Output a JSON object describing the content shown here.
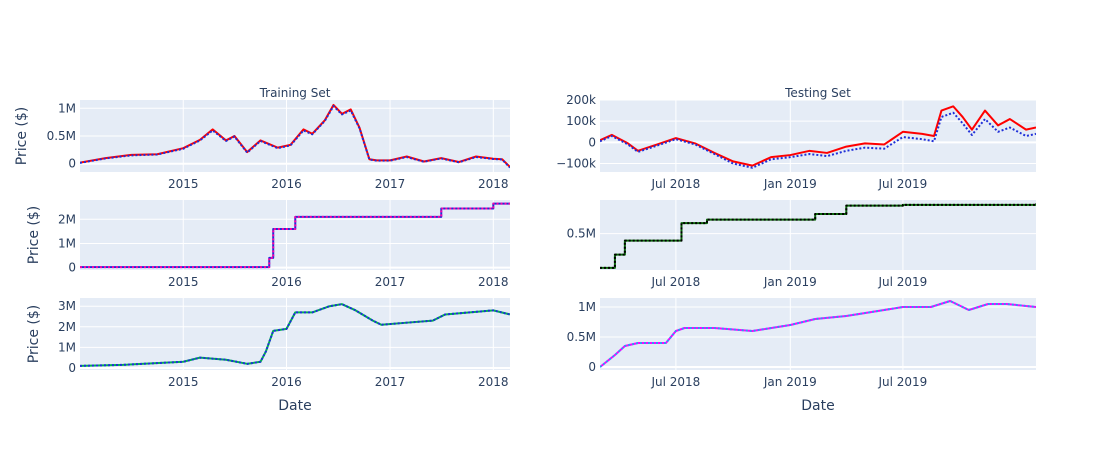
{
  "chart_data": [
    {
      "type": "line",
      "title": "Training Set",
      "ylabel": "Price ($)",
      "xlabel": "",
      "xlim": [
        "2014-01-01",
        "2018-03-01"
      ],
      "ylim": [
        -150000,
        1150000
      ],
      "yticks": [
        0,
        500000,
        1000000
      ],
      "ytick_labels": [
        "0",
        "0.5M",
        "1M"
      ],
      "xticks": [
        "2015-01-01",
        "2016-01-01",
        "2017-01-01",
        "2018-01-01"
      ],
      "xtick_labels": [
        "2015",
        "2016",
        "2017",
        "2018"
      ],
      "series": [
        {
          "color": "#ff0000",
          "dash": "solid",
          "x": [
            "2014-01-01",
            "2014-04-01",
            "2014-07-01",
            "2014-10-01",
            "2015-01-01",
            "2015-03-01",
            "2015-04-15",
            "2015-06-01",
            "2015-07-01",
            "2015-08-15",
            "2015-10-01",
            "2015-12-01",
            "2016-01-15",
            "2016-03-01",
            "2016-04-01",
            "2016-05-15",
            "2016-06-15",
            "2016-07-15",
            "2016-08-15",
            "2016-09-15",
            "2016-10-20",
            "2016-11-15",
            "2017-01-01",
            "2017-03-01",
            "2017-05-01",
            "2017-07-01",
            "2017-09-01",
            "2017-11-01",
            "2018-01-01",
            "2018-02-01",
            "2018-03-01"
          ],
          "y": [
            20000,
            100000,
            160000,
            170000,
            280000,
            430000,
            620000,
            420000,
            500000,
            210000,
            420000,
            290000,
            340000,
            620000,
            540000,
            780000,
            1060000,
            900000,
            980000,
            650000,
            80000,
            60000,
            60000,
            130000,
            40000,
            100000,
            30000,
            130000,
            90000,
            80000,
            -60000
          ]
        },
        {
          "color": "#1f2fd8",
          "dash": "dot",
          "x": [
            "2014-01-01",
            "2014-04-01",
            "2014-07-01",
            "2014-10-01",
            "2015-01-01",
            "2015-03-01",
            "2015-04-15",
            "2015-06-01",
            "2015-07-01",
            "2015-08-15",
            "2015-10-01",
            "2015-12-01",
            "2016-01-15",
            "2016-03-01",
            "2016-04-01",
            "2016-05-15",
            "2016-06-15",
            "2016-07-15",
            "2016-08-15",
            "2016-09-15",
            "2016-10-20",
            "2016-11-15",
            "2017-01-01",
            "2017-03-01",
            "2017-05-01",
            "2017-07-01",
            "2017-09-01",
            "2017-11-01",
            "2018-01-01",
            "2018-02-01",
            "2018-03-01"
          ],
          "y": [
            15000,
            95000,
            150000,
            165000,
            270000,
            420000,
            600000,
            410000,
            490000,
            200000,
            410000,
            280000,
            330000,
            600000,
            530000,
            770000,
            1040000,
            890000,
            960000,
            640000,
            75000,
            55000,
            55000,
            120000,
            35000,
            95000,
            25000,
            120000,
            85000,
            75000,
            -70000
          ]
        }
      ]
    },
    {
      "type": "line",
      "title": "Testing Set",
      "ylabel": "",
      "xlabel": "",
      "xlim": [
        "2018-03-01",
        "2020-01-31"
      ],
      "ylim": [
        -140000,
        200000
      ],
      "yticks": [
        -100000,
        0,
        100000,
        200000
      ],
      "ytick_labels": [
        "−100k",
        "0",
        "100k",
        "200k"
      ],
      "xticks": [
        "2018-07-01",
        "2019-01-01",
        "2019-07-01"
      ],
      "xtick_labels": [
        "Jul 2018",
        "Jan 2019",
        "Jul 2019"
      ],
      "series": [
        {
          "color": "#ff0000",
          "dash": "solid",
          "x": [
            "2018-03-01",
            "2018-03-20",
            "2018-04-15",
            "2018-05-01",
            "2018-06-01",
            "2018-07-01",
            "2018-08-01",
            "2018-09-01",
            "2018-10-01",
            "2018-11-01",
            "2018-12-01",
            "2019-01-01",
            "2019-02-01",
            "2019-03-01",
            "2019-04-01",
            "2019-05-01",
            "2019-06-01",
            "2019-07-01",
            "2019-08-01",
            "2019-08-20",
            "2019-09-01",
            "2019-09-20",
            "2019-10-05",
            "2019-10-20",
            "2019-11-10",
            "2019-12-01",
            "2019-12-20",
            "2020-01-15",
            "2020-01-31"
          ],
          "y": [
            10000,
            35000,
            -5000,
            -40000,
            -10000,
            20000,
            -5000,
            -50000,
            -90000,
            -110000,
            -70000,
            -60000,
            -40000,
            -50000,
            -20000,
            -5000,
            -10000,
            50000,
            40000,
            30000,
            150000,
            170000,
            120000,
            60000,
            150000,
            80000,
            110000,
            60000,
            70000
          ]
        },
        {
          "color": "#1f2fd8",
          "dash": "dot",
          "x": [
            "2018-03-01",
            "2018-03-20",
            "2018-04-15",
            "2018-05-01",
            "2018-06-01",
            "2018-07-01",
            "2018-08-01",
            "2018-09-01",
            "2018-10-01",
            "2018-11-01",
            "2018-12-01",
            "2019-01-01",
            "2019-02-01",
            "2019-03-01",
            "2019-04-01",
            "2019-05-01",
            "2019-06-01",
            "2019-07-01",
            "2019-08-01",
            "2019-08-20",
            "2019-09-01",
            "2019-09-20",
            "2019-10-05",
            "2019-10-20",
            "2019-11-10",
            "2019-12-01",
            "2019-12-20",
            "2020-01-15",
            "2020-01-31"
          ],
          "y": [
            5000,
            30000,
            -10000,
            -45000,
            -15000,
            15000,
            -10000,
            -55000,
            -100000,
            -120000,
            -80000,
            -70000,
            -55000,
            -65000,
            -40000,
            -25000,
            -30000,
            25000,
            15000,
            5000,
            120000,
            140000,
            90000,
            35000,
            110000,
            50000,
            70000,
            30000,
            40000
          ]
        }
      ]
    },
    {
      "type": "line",
      "title": "",
      "ylabel": "Price ($)",
      "xlabel": "",
      "xlim": [
        "2014-01-01",
        "2018-03-01"
      ],
      "ylim": [
        -100000,
        2800000
      ],
      "yticks": [
        0,
        1000000,
        2000000
      ],
      "ytick_labels": [
        "0",
        "1M",
        "2M"
      ],
      "xticks": [
        "2015-01-01",
        "2016-01-01",
        "2017-01-01",
        "2018-01-01"
      ],
      "xtick_labels": [
        "2015",
        "2016",
        "2017",
        "2018"
      ],
      "series": [
        {
          "color": "#1f2fd8",
          "dash": "solid",
          "step": true,
          "x": [
            "2014-01-01",
            "2015-10-15",
            "2015-11-01",
            "2015-11-15",
            "2016-01-01",
            "2016-02-01",
            "2017-06-15",
            "2017-07-01",
            "2018-01-01",
            "2018-03-01"
          ],
          "y": [
            20000,
            20000,
            400000,
            1600000,
            1600000,
            2100000,
            2100000,
            2450000,
            2650000,
            2650000
          ]
        },
        {
          "color": "#ff00a8",
          "dash": "dot",
          "step": true,
          "x": [
            "2014-01-01",
            "2015-10-15",
            "2015-11-01",
            "2015-11-15",
            "2016-01-01",
            "2016-02-01",
            "2017-06-15",
            "2017-07-01",
            "2018-01-01",
            "2018-03-01"
          ],
          "y": [
            20000,
            20000,
            400000,
            1600000,
            1600000,
            2100000,
            2100000,
            2450000,
            2650000,
            2650000
          ]
        }
      ]
    },
    {
      "type": "line",
      "title": "",
      "ylabel": "",
      "xlabel": "",
      "xlim": [
        "2018-03-01",
        "2020-01-31"
      ],
      "ylim": [
        -20000,
        980000
      ],
      "yticks": [
        500000
      ],
      "ytick_labels": [
        "0.5M"
      ],
      "xticks": [
        "2018-07-01",
        "2019-01-01",
        "2019-07-01"
      ],
      "xtick_labels": [
        "Jul 2018",
        "Jan 2019",
        "Jul 2019"
      ],
      "series": [
        {
          "color": "#0b6b0b",
          "dash": "solid",
          "step": true,
          "x": [
            "2018-03-01",
            "2018-03-25",
            "2018-04-10",
            "2018-06-20",
            "2018-07-10",
            "2018-08-20",
            "2019-01-01",
            "2019-02-10",
            "2019-04-01",
            "2019-07-01",
            "2020-01-31"
          ],
          "y": [
            10000,
            200000,
            400000,
            400000,
            650000,
            700000,
            700000,
            780000,
            900000,
            910000,
            930000
          ]
        },
        {
          "color": "#000000",
          "dash": "dot",
          "step": true,
          "x": [
            "2018-03-01",
            "2018-03-25",
            "2018-04-10",
            "2018-06-20",
            "2018-07-10",
            "2018-08-20",
            "2019-01-01",
            "2019-02-10",
            "2019-04-01",
            "2019-07-01",
            "2020-01-31"
          ],
          "y": [
            10000,
            200000,
            400000,
            400000,
            650000,
            700000,
            700000,
            780000,
            900000,
            910000,
            930000
          ]
        }
      ]
    },
    {
      "type": "line",
      "title": "",
      "ylabel": "Price ($)",
      "xlabel": "Date",
      "xlim": [
        "2014-01-01",
        "2018-03-01"
      ],
      "ylim": [
        -100000,
        3400000
      ],
      "yticks": [
        0,
        1000000,
        2000000,
        3000000
      ],
      "ytick_labels": [
        "0",
        "1M",
        "2M",
        "3M"
      ],
      "xticks": [
        "2015-01-01",
        "2016-01-01",
        "2017-01-01",
        "2018-01-01"
      ],
      "xtick_labels": [
        "2015",
        "2016",
        "2017",
        "2018"
      ],
      "series": [
        {
          "color": "#00b050",
          "dash": "solid",
          "x": [
            "2014-01-01",
            "2014-06-01",
            "2015-01-01",
            "2015-03-01",
            "2015-06-01",
            "2015-08-15",
            "2015-10-01",
            "2015-10-20",
            "2015-11-15",
            "2016-01-01",
            "2016-02-01",
            "2016-04-01",
            "2016-06-01",
            "2016-07-15",
            "2016-09-01",
            "2016-11-01",
            "2016-12-01",
            "2017-03-01",
            "2017-06-01",
            "2017-07-15",
            "2018-01-01",
            "2018-03-01"
          ],
          "y": [
            100000,
            150000,
            300000,
            500000,
            400000,
            200000,
            300000,
            800000,
            1800000,
            1900000,
            2700000,
            2700000,
            3000000,
            3100000,
            2800000,
            2300000,
            2100000,
            2200000,
            2300000,
            2600000,
            2800000,
            2600000
          ]
        },
        {
          "color": "#1f2fd8",
          "dash": "dot",
          "x": [
            "2014-01-01",
            "2014-06-01",
            "2015-01-01",
            "2015-03-01",
            "2015-06-01",
            "2015-08-15",
            "2015-10-01",
            "2015-10-20",
            "2015-11-15",
            "2016-01-01",
            "2016-02-01",
            "2016-04-01",
            "2016-06-01",
            "2016-07-15",
            "2016-09-01",
            "2016-11-01",
            "2016-12-01",
            "2017-03-01",
            "2017-06-01",
            "2017-07-15",
            "2018-01-01",
            "2018-03-01"
          ],
          "y": [
            100000,
            150000,
            300000,
            500000,
            400000,
            200000,
            300000,
            800000,
            1800000,
            1900000,
            2700000,
            2700000,
            3000000,
            3100000,
            2800000,
            2300000,
            2100000,
            2200000,
            2300000,
            2600000,
            2800000,
            2600000
          ]
        }
      ]
    },
    {
      "type": "line",
      "title": "",
      "ylabel": "",
      "xlabel": "Date",
      "xlim": [
        "2018-03-01",
        "2020-01-31"
      ],
      "ylim": [
        -50000,
        1150000
      ],
      "yticks": [
        0,
        500000,
        1000000
      ],
      "ytick_labels": [
        "0",
        "0.5M",
        "1M"
      ],
      "xticks": [
        "2018-07-01",
        "2019-01-01",
        "2019-07-01"
      ],
      "xtick_labels": [
        "Jul 2018",
        "Jan 2019",
        "Jul 2019"
      ],
      "series": [
        {
          "color": "#ff00ff",
          "dash": "solid",
          "x": [
            "2018-03-01",
            "2018-03-25",
            "2018-04-10",
            "2018-05-01",
            "2018-06-15",
            "2018-07-01",
            "2018-07-15",
            "2018-09-01",
            "2018-11-01",
            "2019-01-01",
            "2019-02-10",
            "2019-04-01",
            "2019-06-01",
            "2019-07-01",
            "2019-08-15",
            "2019-09-15",
            "2019-10-15",
            "2019-11-15",
            "2019-12-15",
            "2020-01-31"
          ],
          "y": [
            0,
            200000,
            350000,
            400000,
            400000,
            600000,
            650000,
            650000,
            600000,
            700000,
            800000,
            850000,
            950000,
            1000000,
            1000000,
            1100000,
            950000,
            1050000,
            1050000,
            1000000
          ]
        },
        {
          "color": "#2a9df4",
          "dash": "dot",
          "x": [
            "2018-03-01",
            "2018-03-25",
            "2018-04-10",
            "2018-05-01",
            "2018-06-15",
            "2018-07-01",
            "2018-07-15",
            "2018-09-01",
            "2018-11-01",
            "2019-01-01",
            "2019-02-10",
            "2019-04-01",
            "2019-06-01",
            "2019-07-01",
            "2019-08-15",
            "2019-09-15",
            "2019-10-15",
            "2019-11-15",
            "2019-12-15",
            "2020-01-31"
          ],
          "y": [
            0,
            200000,
            350000,
            400000,
            400000,
            600000,
            650000,
            650000,
            600000,
            700000,
            800000,
            850000,
            950000,
            1000000,
            1000000,
            1100000,
            950000,
            1050000,
            1050000,
            1000000
          ]
        }
      ]
    }
  ]
}
